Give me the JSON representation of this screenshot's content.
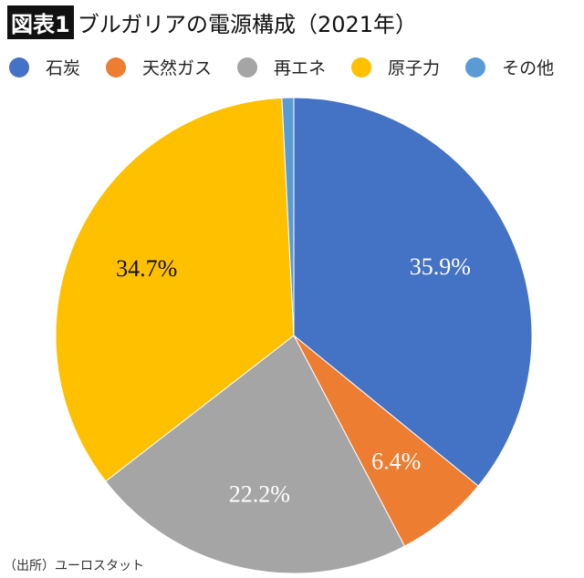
{
  "title_badge": "図表1",
  "title": "ブルガリアの電源構成（2021年）",
  "source": "（出所）ユーロスタット",
  "chart_data": {
    "type": "pie",
    "title": "ブルガリアの電源構成（2021年）",
    "legend_position": "top",
    "start": "12 o'clock, clockwise",
    "slices": [
      {
        "name": "石炭",
        "value": 35.9,
        "label": "35.9%",
        "color": "#4472C4",
        "label_color": "#ffffff"
      },
      {
        "name": "天然ガス",
        "value": 6.4,
        "label": "6.4%",
        "color": "#ED7D31",
        "label_color": "#ffffff"
      },
      {
        "name": "再エネ",
        "value": 22.2,
        "label": "22.2%",
        "color": "#A5A5A5",
        "label_color": "#ffffff"
      },
      {
        "name": "原子力",
        "value": 34.7,
        "label": "34.7%",
        "color": "#FFC000",
        "label_color": "#111111"
      },
      {
        "name": "その他",
        "value": 0.8,
        "label": "",
        "color": "#5B9BD5",
        "label_color": "#ffffff"
      }
    ]
  }
}
